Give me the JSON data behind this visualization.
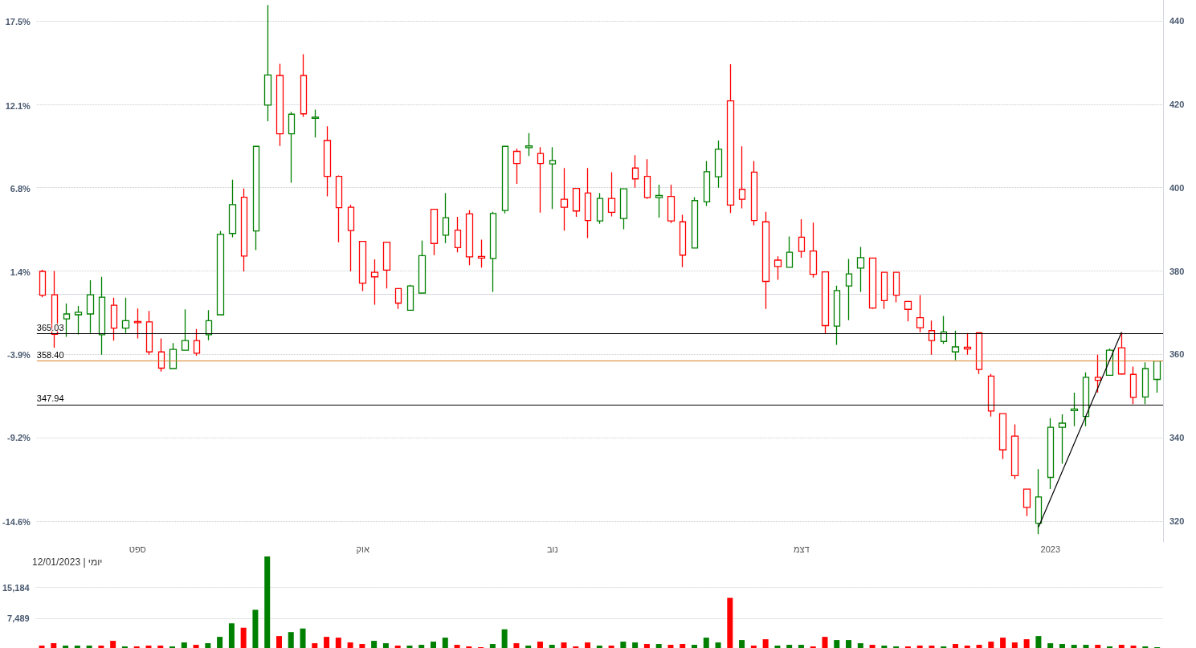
{
  "chart_data": [
    {
      "type": "candlestick",
      "categories": [
        null,
        null,
        null,
        null,
        null,
        null,
        null,
        null,
        "ספט",
        null,
        null,
        null,
        null,
        null,
        null,
        null,
        null,
        null,
        null,
        null,
        null,
        null,
        null,
        null,
        null,
        null,
        null,
        "אוק",
        null,
        null,
        null,
        null,
        null,
        null,
        null,
        null,
        null,
        null,
        null,
        null,
        null,
        null,
        null,
        "נוב",
        null,
        null,
        null,
        null,
        null,
        null,
        null,
        null,
        null,
        null,
        null,
        null,
        null,
        null,
        null,
        null,
        null,
        null,
        null,
        null,
        "דצמ",
        null,
        null,
        null,
        null,
        null,
        null,
        null,
        null,
        null,
        null,
        null,
        null,
        null,
        null,
        null,
        null,
        null,
        null,
        null,
        null,
        "2023",
        null,
        null,
        null,
        null,
        null,
        null,
        null,
        null,
        null
      ],
      "ohlc": [
        [
          379.9,
          380.3,
          373.7,
          374.2
        ],
        [
          374.3,
          380.0,
          361.6,
          364.8
        ],
        [
          368.5,
          372.2,
          364.2,
          369.7
        ],
        [
          369.5,
          371.6,
          364.8,
          370.1
        ],
        [
          369.7,
          377.8,
          365.1,
          374.3
        ],
        [
          364.7,
          378.6,
          359.9,
          373.7
        ],
        [
          371.8,
          373.6,
          363.3,
          366.3
        ],
        [
          366.3,
          373.6,
          365.1,
          368.1
        ],
        [
          367.9,
          371.0,
          363.8,
          367.6
        ],
        [
          367.8,
          370.4,
          359.9,
          360.6
        ],
        [
          360.6,
          363.8,
          355.9,
          356.7
        ],
        [
          356.6,
          362.7,
          356.5,
          361.2
        ],
        [
          361.0,
          370.8,
          360.9,
          363.3
        ],
        [
          363.3,
          366.1,
          359.7,
          360.3
        ],
        [
          364.7,
          370.6,
          363.4,
          368.1
        ],
        [
          369.5,
          389.6,
          369.4,
          388.8
        ],
        [
          389.0,
          401.9,
          388.1,
          395.9
        ],
        [
          397.7,
          399.8,
          379.9,
          383.6
        ],
        [
          389.6,
          410.0,
          385.0,
          409.9
        ],
        [
          419.8,
          443.8,
          415.9,
          427.0
        ],
        [
          426.9,
          429.7,
          410.0,
          412.9
        ],
        [
          412.9,
          418.2,
          401.2,
          417.6
        ],
        [
          426.9,
          432.0,
          417.0,
          417.7
        ],
        [
          416.6,
          418.7,
          412.0,
          416.9
        ],
        [
          411.3,
          414.7,
          397.9,
          402.7
        ],
        [
          402.7,
          402.9,
          386.9,
          395.2
        ],
        [
          395.3,
          395.9,
          379.9,
          389.7
        ],
        [
          387.1,
          387.2,
          375.2,
          377.1
        ],
        [
          379.7,
          382.8,
          371.9,
          378.6
        ],
        [
          386.9,
          387.0,
          375.8,
          380.2
        ],
        [
          375.8,
          375.9,
          370.9,
          372.3
        ],
        [
          370.6,
          376.7,
          370.5,
          376.4
        ],
        [
          374.7,
          387.3,
          374.6,
          383.7
        ],
        [
          394.8,
          394.9,
          383.8,
          386.6
        ],
        [
          388.6,
          398.7,
          386.7,
          392.8
        ],
        [
          389.8,
          393.0,
          384.5,
          385.6
        ],
        [
          393.7,
          394.6,
          381.4,
          383.4
        ],
        [
          383.5,
          387.5,
          380.8,
          383.1
        ],
        [
          383.0,
          394.2,
          375.0,
          393.8
        ],
        [
          394.5,
          410.0,
          393.8,
          409.9
        ],
        [
          408.7,
          409.3,
          400.9,
          405.8
        ],
        [
          409.6,
          413.1,
          407.6,
          410.0
        ],
        [
          408.2,
          409.7,
          394.0,
          405.8
        ],
        [
          405.7,
          409.7,
          394.9,
          406.5
        ],
        [
          397.2,
          404.7,
          389.7,
          395.3
        ],
        [
          399.8,
          399.9,
          393.0,
          394.4
        ],
        [
          398.7,
          404.7,
          387.9,
          392.1
        ],
        [
          392.0,
          398.7,
          391.3,
          397.4
        ],
        [
          397.4,
          403.7,
          393.1,
          394.1
        ],
        [
          392.6,
          399.8,
          390.0,
          399.7
        ],
        [
          404.7,
          407.8,
          400.0,
          402.1
        ],
        [
          402.7,
          406.8,
          397.3,
          397.6
        ],
        [
          397.6,
          400.7,
          392.8,
          398.1
        ],
        [
          397.9,
          400.7,
          391.5,
          392.0
        ],
        [
          391.8,
          393.5,
          380.9,
          383.8
        ],
        [
          385.5,
          397.7,
          385.4,
          396.9
        ],
        [
          396.6,
          406.4,
          395.6,
          403.8
        ],
        [
          402.6,
          411.3,
          400.0,
          409.2
        ],
        [
          420.8,
          429.6,
          393.9,
          395.8
        ],
        [
          399.6,
          409.9,
          395.0,
          397.2
        ],
        [
          403.7,
          406.4,
          391.0,
          392.1
        ],
        [
          391.8,
          394.2,
          370.9,
          377.5
        ],
        [
          382.6,
          383.5,
          377.9,
          381.1
        ],
        [
          380.9,
          388.3,
          380.8,
          384.5
        ],
        [
          388.1,
          392.4,
          383.2,
          384.7
        ],
        [
          384.8,
          391.6,
          378.4,
          379.2
        ],
        [
          379.8,
          379.9,
          365.0,
          366.9
        ],
        [
          366.8,
          376.5,
          362.3,
          375.3
        ],
        [
          376.4,
          382.9,
          368.2,
          379.3
        ],
        [
          380.7,
          385.8,
          375.0,
          383.2
        ],
        [
          383.1,
          383.2,
          370.9,
          371.1
        ],
        [
          379.7,
          379.8,
          370.9,
          372.9
        ],
        [
          379.7,
          379.8,
          372.5,
          374.2
        ],
        [
          372.7,
          372.8,
          367.9,
          370.8
        ],
        [
          368.8,
          374.2,
          365.3,
          366.4
        ],
        [
          365.7,
          368.1,
          359.9,
          363.3
        ],
        [
          363.1,
          369.2,
          362.5,
          365.4
        ],
        [
          360.6,
          365.7,
          358.6,
          361.8
        ],
        [
          361.7,
          365.1,
          359.9,
          361.3
        ],
        [
          365.2,
          365.3,
          355.3,
          356.4
        ],
        [
          354.8,
          355.3,
          345.1,
          346.4
        ],
        [
          345.8,
          345.9,
          334.9,
          337.1
        ],
        [
          340.4,
          343.2,
          330.1,
          330.9
        ],
        [
          327.7,
          327.8,
          321.2,
          323.3
        ],
        [
          319.5,
          332.5,
          316.9,
          325.8
        ],
        [
          330.5,
          344.7,
          327.7,
          342.5
        ],
        [
          342.5,
          345.6,
          333.8,
          343.5
        ],
        [
          346.5,
          350.8,
          342.8,
          346.9
        ],
        [
          345.1,
          355.7,
          342.8,
          354.5
        ],
        [
          354.5,
          359.9,
          350.8,
          353.8
        ],
        [
          355.0,
          361.4,
          354.9,
          361.0
        ],
        [
          361.6,
          365.3,
          355.1,
          355.3
        ],
        [
          355.2,
          357.1,
          348.1,
          349.7
        ],
        [
          349.8,
          358.1,
          348.1,
          356.6
        ],
        [
          354.0,
          358.4,
          350.8,
          358.4
        ]
      ],
      "colors": [
        "#ff0000",
        "#ff0000",
        "#008000",
        "#008000",
        "#008000",
        "#008000",
        "#ff0000",
        "#008000",
        "#ff0000",
        "#ff0000",
        "#ff0000",
        "#008000",
        "#008000",
        "#ff0000",
        "#008000",
        "#008000",
        "#008000",
        "#ff0000",
        "#008000",
        "#008000",
        "#ff0000",
        "#008000",
        "#ff0000",
        "#008000",
        "#ff0000",
        "#ff0000",
        "#ff0000",
        "#ff0000",
        "#ff0000",
        "#ff0000",
        "#ff0000",
        "#008000",
        "#008000",
        "#ff0000",
        "#008000",
        "#ff0000",
        "#ff0000",
        "#ff0000",
        "#008000",
        "#008000",
        "#ff0000",
        "#008000",
        "#ff0000",
        "#008000",
        "#ff0000",
        "#ff0000",
        "#ff0000",
        "#008000",
        "#ff0000",
        "#008000",
        "#ff0000",
        "#ff0000",
        "#008000",
        "#ff0000",
        "#ff0000",
        "#008000",
        "#008000",
        "#008000",
        "#ff0000",
        "#ff0000",
        "#ff0000",
        "#ff0000",
        "#ff0000",
        "#008000",
        "#ff0000",
        "#ff0000",
        "#ff0000",
        "#008000",
        "#008000",
        "#008000",
        "#ff0000",
        "#ff0000",
        "#ff0000",
        "#ff0000",
        "#ff0000",
        "#ff0000",
        "#008000",
        "#008000",
        "#ff0000",
        "#ff0000",
        "#ff0000",
        "#ff0000",
        "#ff0000",
        "#ff0000",
        "#008000",
        "#008000",
        "#008000",
        "#008000",
        "#008000",
        "#ff0000",
        "#008000",
        "#ff0000",
        "#ff0000",
        "#008000",
        "#008000"
      ],
      "series": [
        {
          "type": "line",
          "color": "#000000",
          "values": [
            null,
            null,
            null,
            null,
            null,
            null,
            null,
            null,
            null,
            null,
            null,
            null,
            null,
            null,
            null,
            null,
            null,
            null,
            null,
            null,
            null,
            null,
            null,
            null,
            null,
            null,
            null,
            null,
            null,
            null,
            null,
            null,
            null,
            null,
            null,
            null,
            null,
            null,
            null,
            null,
            null,
            null,
            null,
            null,
            null,
            null,
            null,
            null,
            null,
            null,
            null,
            null,
            null,
            null,
            null,
            null,
            null,
            null,
            null,
            null,
            null,
            null,
            null,
            null,
            null,
            null,
            null,
            null,
            null,
            null,
            null,
            null,
            null,
            null,
            null,
            null,
            null,
            null,
            null,
            null,
            null,
            null,
            null,
            null,
            318.6,
            null,
            null,
            null,
            null,
            null,
            null,
            365.3,
            null,
            null,
            null
          ]
        }
      ],
      "ylim": [
        315,
        445
      ],
      "yticks": [
        320,
        340,
        360,
        380,
        400,
        420,
        440
      ],
      "y2lim": [
        -15.9,
        18.9
      ],
      "y2ticks": [
        {
          "value": 17.5,
          "label": "17.5%"
        },
        {
          "value": 12.1,
          "label": "12.1%"
        },
        {
          "value": 6.8,
          "label": "6.8%"
        },
        {
          "value": 1.4,
          "label": "1.4%"
        },
        {
          "value": -3.9,
          "label": "-3.9%"
        },
        {
          "value": -9.2,
          "label": "-9.2%"
        },
        {
          "value": -14.6,
          "label": "-14.6%"
        }
      ],
      "grid": "y",
      "ref_lines": [
        {
          "axis": "y",
          "value": 365.03,
          "label": "365.03",
          "color": "#000000"
        },
        {
          "axis": "y",
          "value": 347.94,
          "label": "347.94",
          "color": "#000000"
        },
        {
          "axis": "y",
          "value": 358.4,
          "label": "358.40",
          "color": "#d9822b"
        }
      ]
    },
    {
      "type": "bar",
      "categories": [
        null,
        null,
        null,
        null,
        null,
        null,
        null,
        null,
        null,
        null,
        null,
        null,
        null,
        null,
        null,
        null,
        null,
        null,
        null,
        null,
        null,
        null,
        null,
        null,
        null,
        null,
        null,
        null,
        null,
        null,
        null,
        null,
        null,
        null,
        null,
        null,
        null,
        null,
        null,
        null,
        null,
        null,
        null,
        null,
        null,
        null,
        null,
        null,
        null,
        null,
        null,
        null,
        null,
        null,
        null,
        null,
        null,
        null,
        null,
        null,
        null,
        null,
        null,
        null,
        null,
        null,
        null,
        null,
        null,
        null,
        null,
        null,
        null,
        null,
        null,
        null,
        null,
        null,
        null,
        null,
        null,
        null,
        null,
        null,
        null,
        null,
        null,
        null,
        null,
        null,
        null,
        null,
        null,
        null,
        null
      ],
      "values": [
        600,
        1200,
        600,
        600,
        600,
        600,
        1800,
        400,
        400,
        600,
        600,
        400,
        1400,
        800,
        1200,
        2800,
        6200,
        5100,
        9600,
        23000,
        3000,
        4000,
        4900,
        1200,
        2800,
        2600,
        1400,
        1000,
        1800,
        1200,
        600,
        600,
        800,
        1600,
        2600,
        800,
        400,
        200,
        1000,
        4700,
        1200,
        600,
        1600,
        800,
        1400,
        400,
        1400,
        600,
        600,
        1600,
        1400,
        1000,
        1000,
        800,
        1000,
        800,
        2600,
        1400,
        12600,
        2000,
        600,
        2200,
        600,
        800,
        800,
        400,
        2800,
        2000,
        2000,
        1200,
        800,
        600,
        400,
        400,
        600,
        600,
        400,
        1000,
        600,
        800,
        1600,
        2600,
        1400,
        2200,
        3000,
        1200,
        1000,
        800,
        800,
        800,
        400,
        800,
        600,
        400,
        200
      ],
      "colors": [
        "#ff0000",
        "#ff0000",
        "#008000",
        "#008000",
        "#008000",
        "#ff0000",
        "#ff0000",
        "#008000",
        "#ff0000",
        "#ff0000",
        "#ff0000",
        "#008000",
        "#008000",
        "#ff0000",
        "#008000",
        "#008000",
        "#008000",
        "#ff0000",
        "#008000",
        "#008000",
        "#ff0000",
        "#008000",
        "#008000",
        "#ff0000",
        "#ff0000",
        "#ff0000",
        "#ff0000",
        "#ff0000",
        "#008000",
        "#008000",
        "#ff0000",
        "#008000",
        "#008000",
        "#008000",
        "#008000",
        "#ff0000",
        "#ff0000",
        "#ff0000",
        "#008000",
        "#008000",
        "#ff0000",
        "#008000",
        "#ff0000",
        "#008000",
        "#ff0000",
        "#ff0000",
        "#ff0000",
        "#008000",
        "#ff0000",
        "#008000",
        "#008000",
        "#ff0000",
        "#008000",
        "#ff0000",
        "#ff0000",
        "#008000",
        "#008000",
        "#008000",
        "#ff0000",
        "#008000",
        "#ff0000",
        "#ff0000",
        "#008000",
        "#008000",
        "#008000",
        "#ff0000",
        "#ff0000",
        "#008000",
        "#008000",
        "#008000",
        "#ff0000",
        "#008000",
        "#008000",
        "#ff0000",
        "#ff0000",
        "#ff0000",
        "#008000",
        "#ff0000",
        "#ff0000",
        "#ff0000",
        "#ff0000",
        "#ff0000",
        "#ff0000",
        "#ff0000",
        "#008000",
        "#008000",
        "#008000",
        "#008000",
        "#008000",
        "#ff0000",
        "#008000",
        "#ff0000",
        "#ff0000",
        "#008000",
        "#008000"
      ],
      "ylim": [
        0,
        23000
      ],
      "yticks": [
        {
          "value": 7489,
          "label": "7,489"
        },
        {
          "value": 15184,
          "label": "15,184"
        }
      ],
      "grid": "y",
      "tick_labels": "y",
      "annotations": [
        "12/01/2023 | יומי"
      ]
    }
  ]
}
